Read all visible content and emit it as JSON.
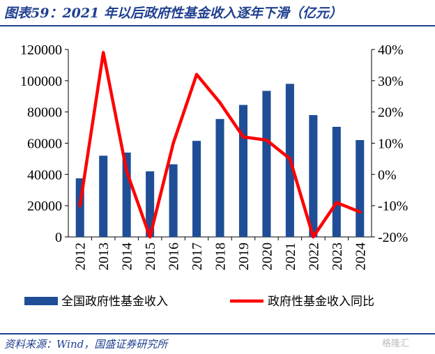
{
  "title": "图表59：2021 年以后政府性基金收入逐年下滑（亿元）",
  "source": "资料来源：Wind，国盛证券研究所",
  "watermark": "格隆汇",
  "colors": {
    "bar": "#1f4e96",
    "line": "#ff0000",
    "title": "#1f3f8f"
  },
  "chart_data": {
    "type": "bar+line",
    "categories": [
      "2012",
      "2013",
      "2014",
      "2015",
      "2016",
      "2017",
      "2018",
      "2019",
      "2020",
      "2021",
      "2022",
      "2023",
      "2024"
    ],
    "series": [
      {
        "name": "全国政府性基金收入",
        "type": "bar",
        "axis": "left",
        "values": [
          37500,
          52000,
          54000,
          42000,
          46500,
          61500,
          75500,
          84500,
          93500,
          98000,
          78000,
          70500,
          62000
        ]
      },
      {
        "name": "政府性基金收入同比",
        "type": "line",
        "axis": "right",
        "values": [
          -10,
          39,
          1,
          -20,
          10,
          32,
          23,
          12,
          11,
          5,
          -20,
          -9,
          -12
        ]
      }
    ],
    "y_left": {
      "ylim": [
        0,
        120000
      ],
      "ticks": [
        "0",
        "20000",
        "40000",
        "60000",
        "80000",
        "100000",
        "120000"
      ]
    },
    "y_right": {
      "ylim": [
        -20,
        40
      ],
      "ticks": [
        "-20%",
        "-10%",
        "0%",
        "10%",
        "20%",
        "30%",
        "40%"
      ]
    },
    "legend_position": "bottom",
    "grid": false
  }
}
